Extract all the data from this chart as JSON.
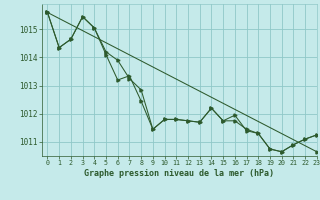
{
  "title": "Graphe pression niveau de la mer (hPa)",
  "bg_color": "#c5eaea",
  "grid_color": "#90c8c8",
  "line_color": "#2d5a2d",
  "xlim": [
    -0.5,
    23
  ],
  "ylim": [
    1010.5,
    1015.9
  ],
  "yticks": [
    1011,
    1012,
    1013,
    1014,
    1015
  ],
  "xticks": [
    0,
    1,
    2,
    3,
    4,
    5,
    6,
    7,
    8,
    9,
    10,
    11,
    12,
    13,
    14,
    15,
    16,
    17,
    18,
    19,
    20,
    21,
    22,
    23
  ],
  "series1": [
    1015.6,
    1014.35,
    1014.65,
    1015.45,
    1015.05,
    1014.2,
    1013.9,
    1013.25,
    1012.85,
    1011.45,
    1011.8,
    1011.8,
    1011.75,
    1011.7,
    1012.2,
    1011.75,
    1011.75,
    1011.45,
    1011.3,
    1010.75,
    1010.65,
    1010.9,
    1011.1,
    1011.25
  ],
  "series2": [
    1015.6,
    1014.35,
    1014.65,
    1015.45,
    1015.05,
    1014.1,
    1013.2,
    1013.35,
    1012.45,
    1011.45,
    1011.8,
    1011.8,
    1011.75,
    1011.7,
    1012.2,
    1011.75,
    1011.95,
    1011.4,
    1011.3,
    1010.75,
    1010.65,
    1010.9,
    1011.1,
    1011.25
  ],
  "series3_x": [
    0,
    23
  ],
  "series3_y": [
    1015.6,
    1010.65
  ]
}
